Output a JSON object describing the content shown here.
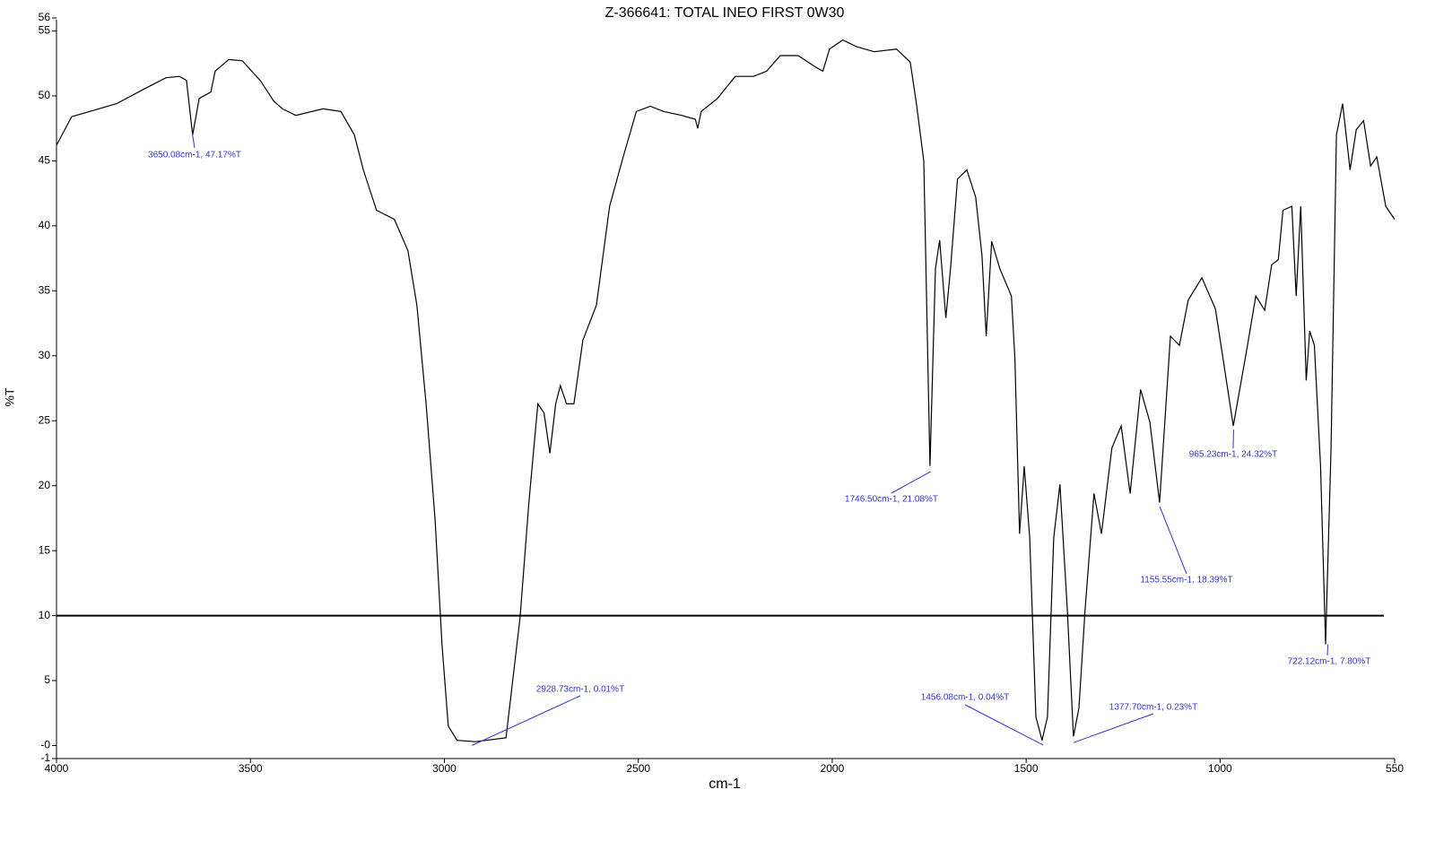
{
  "chart_data": {
    "type": "line",
    "title": "Z-366641: TOTAL INEO FIRST 0W30",
    "x_label": "cm-1",
    "y_label": "%T",
    "xlim": [
      4000,
      550
    ],
    "xticks": [
      4000,
      3500,
      3000,
      2500,
      2000,
      1500,
      1000,
      550
    ],
    "ylim": [
      -1,
      56
    ],
    "yticks": [
      -1,
      {
        "value": 0,
        "label": "-0"
      },
      5,
      10,
      15,
      20,
      25,
      30,
      35,
      40,
      45,
      50,
      55,
      56
    ],
    "reference_line": 10,
    "series": [
      {
        "color": "#000000",
        "x": [
          4000,
          3961,
          3914,
          3845,
          3776,
          3718,
          3683,
          3665,
          3649,
          3632,
          3602,
          3591,
          3556,
          3521,
          3475,
          3440,
          3417,
          3383,
          3313,
          3267,
          3232,
          3209,
          3175,
          3129,
          3094,
          3071,
          3047,
          3024,
          3006,
          2990,
          2967,
          2920,
          2841,
          2805,
          2782,
          2759,
          2743,
          2728,
          2713,
          2701,
          2685,
          2666,
          2643,
          2608,
          2574,
          2539,
          2505,
          2469,
          2435,
          2388,
          2353,
          2347,
          2338,
          2296,
          2250,
          2203,
          2169,
          2134,
          2088,
          2042,
          2024,
          2007,
          1973,
          1938,
          1892,
          1834,
          1799,
          1783,
          1764,
          1748,
          1734,
          1723,
          1707,
          1695,
          1677,
          1653,
          1630,
          1614,
          1603,
          1589,
          1568,
          1538,
          1529,
          1517,
          1505,
          1491,
          1475,
          1459,
          1445,
          1429,
          1413,
          1394,
          1378,
          1364,
          1348,
          1325,
          1306,
          1279,
          1255,
          1232,
          1205,
          1181,
          1156,
          1128,
          1105,
          1082,
          1047,
          1012,
          966,
          931,
          908,
          885,
          867,
          850,
          838,
          815,
          804,
          792,
          778,
          769,
          757,
          741,
          728,
          714,
          700,
          684,
          665,
          649,
          630,
          612,
          596,
          573,
          550
        ],
        "values": [
          46.2,
          48.4,
          48.8,
          49.4,
          50.5,
          51.4,
          51.5,
          51.2,
          47.0,
          49.8,
          50.3,
          51.9,
          52.8,
          52.7,
          51.2,
          49.6,
          49.0,
          48.5,
          49.0,
          48.8,
          47.0,
          44.3,
          41.2,
          40.5,
          38.1,
          33.9,
          26.3,
          17.4,
          7.7,
          1.5,
          0.4,
          0.3,
          0.6,
          9.8,
          18.7,
          26.3,
          25.6,
          22.5,
          26.3,
          27.7,
          26.3,
          26.3,
          31.2,
          33.9,
          41.5,
          45.3,
          48.8,
          49.2,
          48.8,
          48.5,
          48.2,
          47.5,
          48.8,
          49.8,
          51.5,
          51.5,
          51.9,
          53.1,
          53.1,
          52.2,
          51.9,
          53.6,
          54.3,
          53.8,
          53.4,
          53.6,
          52.6,
          49.4,
          45.0,
          21.5,
          36.7,
          38.9,
          32.9,
          36.7,
          43.6,
          44.3,
          42.2,
          37.7,
          31.5,
          38.8,
          36.7,
          34.6,
          29.8,
          16.3,
          21.5,
          16.0,
          2.2,
          0.4,
          2.2,
          16.0,
          20.1,
          10.5,
          0.7,
          2.9,
          10.5,
          19.4,
          16.3,
          22.9,
          24.6,
          19.4,
          27.4,
          24.9,
          18.7,
          31.5,
          30.8,
          34.3,
          36.0,
          33.6,
          24.6,
          30.5,
          34.6,
          33.5,
          37.0,
          37.4,
          41.2,
          41.5,
          34.6,
          41.5,
          28.1,
          31.9,
          30.8,
          21.5,
          7.8,
          22.9,
          47.0,
          49.4,
          44.3,
          47.4,
          48.1,
          44.6,
          45.3,
          41.5,
          40.5
        ]
      }
    ],
    "annotations": [
      {
        "label": "3650.08cm-1, 47.17%T",
        "x": 3650.08,
        "y": 47.17
      },
      {
        "label": "2928.73cm-1, 0.01%T",
        "x": 2928.73,
        "y": 0.01
      },
      {
        "label": "1746.50cm-1, 21.08%T",
        "x": 1746.5,
        "y": 21.08
      },
      {
        "label": "1456.08cm-1, 0.04%T",
        "x": 1456.08,
        "y": 0.04
      },
      {
        "label": "1377.70cm-1, 0.23%T",
        "x": 1377.7,
        "y": 0.23
      },
      {
        "label": "1155.55cm-1, 18.39%T",
        "x": 1155.55,
        "y": 18.39
      },
      {
        "label": "965.23cm-1, 24.32%T",
        "x": 965.23,
        "y": 24.32
      },
      {
        "label": "722.12cm-1, 7.80%T",
        "x": 722.12,
        "y": 7.8
      }
    ]
  }
}
